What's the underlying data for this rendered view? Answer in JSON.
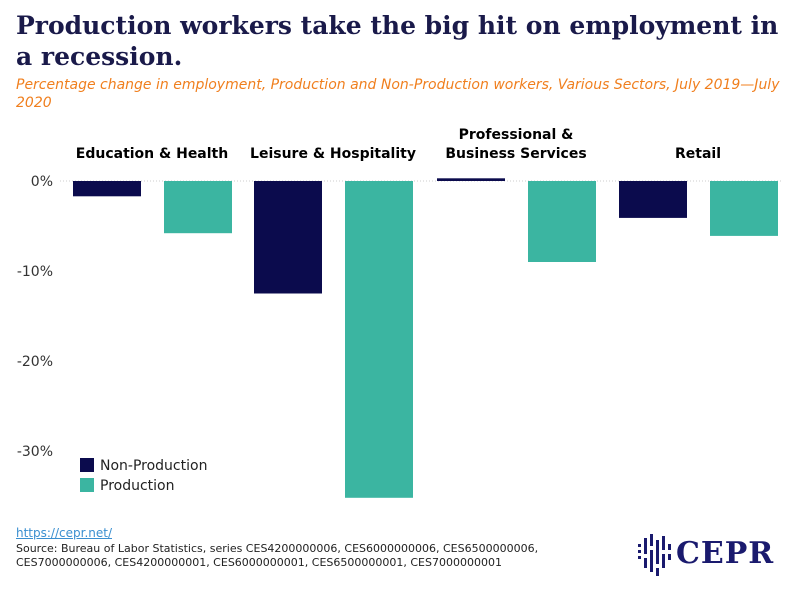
{
  "title": "Production workers take the big hit on employment in a recession.",
  "subtitle": "Percentage change in employment, Production and Non-Production workers, Various Sectors, July 2019—July 2020",
  "footer": {
    "link": "https://cepr.net/",
    "source": "Source: Bureau of Labor Statistics, series CES4200000006, CES6000000006, CES6500000006, CES7000000006, CES4200000001, CES6000000001, CES6500000001, CES7000000001"
  },
  "logo": {
    "text": "CEPR"
  },
  "colors": {
    "non_production": "#0b0b4d",
    "production": "#3bb5a1"
  },
  "chart_data": {
    "type": "bar",
    "categories": [
      "Education & Health",
      "Leisure & Hospitality",
      "Professional &\nBusiness Services",
      "Retail"
    ],
    "series": [
      {
        "name": "Non-Production",
        "values": [
          -1.7,
          -12.5,
          0.3,
          -4.1
        ]
      },
      {
        "name": "Production",
        "values": [
          -5.8,
          -35.2,
          -9.0,
          -6.1
        ]
      }
    ],
    "yticks": [
      "0%",
      "-10%",
      "-20%",
      "-30%"
    ],
    "ylim": [
      -35.5,
      0.5
    ],
    "grid": false,
    "legend_position": "bottom-left"
  }
}
